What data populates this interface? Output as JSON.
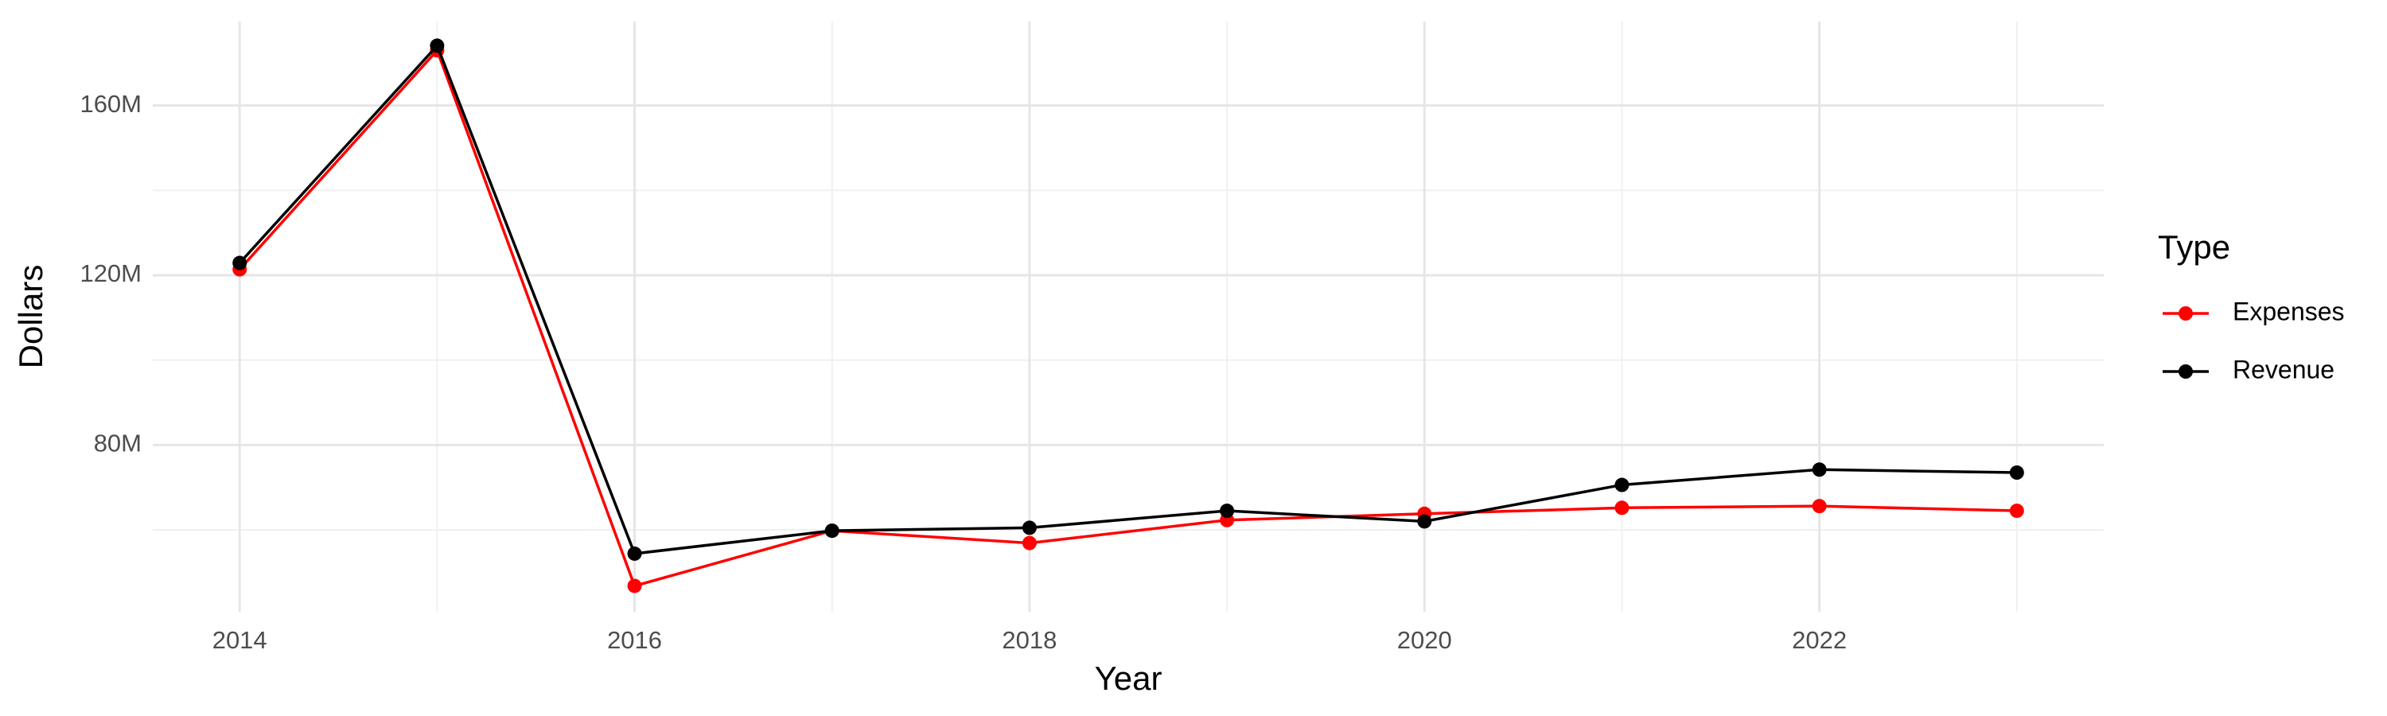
{
  "chart_data": {
    "type": "line",
    "x_label": "Year",
    "y_label": "Dollars",
    "legend_title": "Type",
    "legend_position": "right",
    "grid": true,
    "x": [
      2014,
      2015,
      2016,
      2017,
      2018,
      2019,
      2020,
      2021,
      2022,
      2023
    ],
    "series": [
      {
        "name": "Expenses",
        "color": "#ff0000",
        "values": [
          121400000,
          173000000,
          46800000,
          59800000,
          56900000,
          62300000,
          63800000,
          65200000,
          65600000,
          64500000
        ]
      },
      {
        "name": "Revenue",
        "color": "#000000",
        "values": [
          122900000,
          174100000,
          54400000,
          59800000,
          60500000,
          64500000,
          62000000,
          70600000,
          74200000,
          73500000
        ]
      }
    ],
    "xlim": [
      2013.56,
      2023.44
    ],
    "xticks": [
      2014,
      2016,
      2018,
      2020,
      2022
    ],
    "ylim": [
      40700000,
      179800000
    ],
    "yticks": [
      {
        "value": 80000000,
        "label": "80M"
      },
      {
        "value": 120000000,
        "label": "120M"
      },
      {
        "value": 160000000,
        "label": "160M"
      }
    ]
  }
}
